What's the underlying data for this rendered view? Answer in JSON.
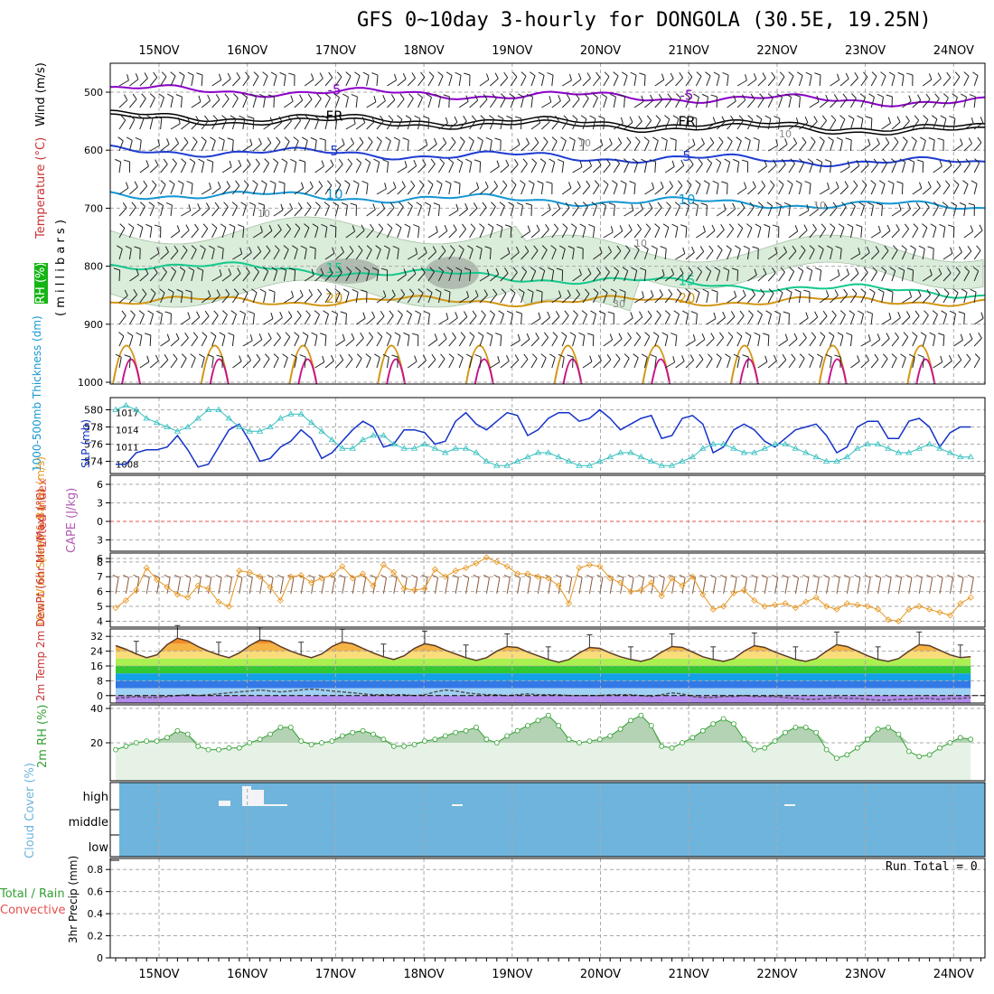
{
  "title": "GFS 0~10day 3-hourly for DONGOLA (30.5E, 19.25N)",
  "run_total": "Run Total = 0",
  "colors": {
    "purple": "#8a00c8",
    "black": "#000000",
    "blue": "#1e3cd2",
    "cyan": "#1496d2",
    "green": "#14c88c",
    "orange": "#d29614",
    "magenta": "#c8148c",
    "slp": "#1432c8",
    "thick": "#32bebe",
    "wind10": "#e6961e",
    "rh2m": "#32a032",
    "cloud": "#6eb4dc",
    "lifted_zero": "#e65050"
  },
  "chart_data": [
    {
      "id": "upper",
      "type": "contour",
      "title": "",
      "ylabel_parts": [
        "Wind (m/s)",
        " Temperature (°C)",
        "RH (%)"
      ],
      "ylabel_unit": "( m i l l i b a r s )",
      "y_ticks": [
        "500",
        "600",
        "700",
        "800",
        "900",
        "1000"
      ],
      "ylim": [
        450,
        1000
      ],
      "temperature_contours": [
        {
          "label": "-5",
          "p": 495
        },
        {
          "label": "FR",
          "p": 540
        },
        {
          "label": "5",
          "p": 600
        },
        {
          "label": "10",
          "p": 675
        },
        {
          "label": "15",
          "p": 795
        },
        {
          "label": "20",
          "p": 860
        }
      ],
      "rh_contour_labels": [
        "10",
        "10",
        "10",
        "10",
        "10",
        "30"
      ]
    },
    {
      "id": "slp_thickness",
      "type": "line",
      "ylabel_left": "1000-500mb Thickness (dm)",
      "ylabel_right": "SLP (mb)",
      "thickness_ticks": [
        "580",
        "578",
        "576",
        "574"
      ],
      "thickness_range": [
        573,
        581
      ],
      "slp_ticks": [
        "1017",
        "1014",
        "1011",
        "1008"
      ],
      "slp_range": [
        1007,
        1019
      ],
      "series": [
        {
          "name": "SLP (mb)",
          "values": [
            1008,
            1008,
            1010,
            1010.5,
            1010.5,
            1011,
            1013,
            1010.5,
            1007.5,
            1008,
            1011,
            1014,
            1015,
            1012,
            1008.5,
            1009,
            1011,
            1012,
            1014,
            1012.5,
            1009,
            1010,
            1012,
            1014,
            1015.5,
            1014.5,
            1011,
            1011.5,
            1014,
            1014,
            1013.5,
            1011.5,
            1012,
            1015.5,
            1017,
            1015,
            1014,
            1015.5,
            1017,
            1016.5,
            1013,
            1014,
            1016,
            1017,
            1017,
            1015.5,
            1016,
            1017.5,
            1016,
            1014,
            1015,
            1016,
            1016.5,
            1012.5,
            1013,
            1016,
            1016.5,
            1015,
            1010,
            1011,
            1014,
            1015,
            1014,
            1012,
            1011,
            1012.5,
            1014,
            1014.5,
            1015,
            1013,
            1010,
            1011,
            1014.5,
            1015.5,
            1015.5,
            1012.5,
            1012.5,
            1015.5,
            1016,
            1014.5,
            1011,
            1013.5,
            1014.5,
            1014.5
          ]
        },
        {
          "name": "Thickness (dm)",
          "values": [
            580,
            580.5,
            580,
            579,
            578.5,
            578,
            577.5,
            578,
            579,
            580,
            580,
            579,
            578,
            577.5,
            577.5,
            578,
            579,
            579.5,
            579.5,
            578.5,
            577.5,
            576.5,
            575.5,
            575.5,
            576.5,
            577,
            577,
            576,
            575.5,
            575.5,
            576,
            575.5,
            575,
            575.5,
            575.5,
            575,
            574,
            573.5,
            573.5,
            574,
            574.5,
            575,
            575,
            574.5,
            574,
            573.5,
            573.5,
            574,
            574.5,
            575,
            575,
            574.5,
            574,
            573.5,
            573.5,
            574,
            574.5,
            575.5,
            576,
            576,
            575.5,
            575,
            575,
            575.5,
            576,
            576,
            575.5,
            575,
            574.5,
            574,
            574,
            574.5,
            575.5,
            576,
            576,
            575.5,
            575,
            575,
            575.5,
            576,
            575.5,
            575,
            574.5,
            574.5
          ]
        }
      ]
    },
    {
      "id": "cape",
      "type": "line",
      "ylabel_left": "Lifted Index",
      "ylabel_right": "CAPE (J/kg)",
      "y_ticks": [
        "6",
        "3",
        "0",
        "3",
        "6"
      ],
      "ylim": [
        -6,
        6
      ],
      "series": [
        {
          "name": "Lifted Index zero",
          "values": [
            0
          ]
        }
      ]
    },
    {
      "id": "wind10m",
      "type": "line",
      "ylabel": "10m Wind Speed & Barbs (m/s)",
      "y_ticks": [
        "8",
        "7",
        "6",
        "5",
        "4"
      ],
      "ylim": [
        3.6,
        8.6
      ],
      "series": [
        {
          "name": "10m wind speed",
          "values": [
            4.9,
            5.4,
            6.1,
            7.6,
            6.8,
            6.3,
            5.8,
            5.6,
            6.4,
            6.2,
            5.3,
            5.0,
            7.4,
            7.3,
            7.0,
            6.3,
            5.4,
            7.0,
            7.1,
            6.6,
            6.9,
            7.1,
            7.7,
            6.9,
            7.2,
            6.4,
            7.8,
            7.3,
            6.2,
            6.1,
            6.2,
            7.5,
            7.0,
            7.4,
            7.6,
            7.9,
            8.3,
            8.0,
            7.7,
            7.2,
            7.2,
            7.0,
            6.9,
            6.4,
            5.2,
            7.6,
            7.8,
            7.7,
            6.9,
            6.6,
            6.0,
            6.1,
            6.6,
            5.7,
            6.9,
            6.4,
            7.0,
            5.8,
            4.8,
            5.0,
            5.9,
            6.1,
            5.4,
            5.0,
            5.1,
            5.2,
            4.9,
            5.3,
            5.6,
            5.0,
            4.8,
            5.2,
            5.1,
            5.0,
            4.8,
            4.1,
            4.0,
            4.8,
            5.0,
            4.8,
            4.6,
            4.4,
            5.2,
            5.6
          ]
        }
      ]
    },
    {
      "id": "temp2m",
      "type": "area",
      "ylabel": "2m Temp 2m DewPt (6hr Min/Max) (°C)",
      "y_ticks": [
        "32",
        "24",
        "16",
        "8",
        "0"
      ],
      "ylim": [
        -4,
        36
      ],
      "series": [
        {
          "name": "2m Temp",
          "values": [
            27.0,
            25.0,
            22.5,
            20.5,
            22.0,
            27.5,
            31.0,
            29.5,
            26.5,
            24.0,
            22.0,
            20.5,
            23.0,
            27.0,
            30.0,
            29.5,
            26.5,
            24.0,
            22.0,
            20.5,
            22.5,
            26.5,
            29.0,
            28.0,
            25.5,
            23.0,
            21.0,
            19.5,
            21.5,
            25.5,
            28.0,
            27.0,
            24.5,
            22.5,
            20.5,
            19.0,
            20.5,
            24.0,
            26.5,
            26.0,
            23.5,
            21.5,
            19.5,
            18.0,
            19.5,
            23.0,
            26.0,
            25.5,
            23.0,
            21.0,
            19.5,
            18.5,
            20.0,
            23.5,
            26.5,
            26.0,
            23.5,
            21.0,
            19.5,
            18.5,
            20.0,
            24.0,
            27.0,
            26.0,
            23.5,
            21.5,
            19.5,
            18.5,
            20.0,
            24.0,
            27.5,
            26.5,
            24.0,
            21.5,
            19.5,
            18.5,
            20.0,
            24.0,
            27.5,
            27.0,
            24.5,
            22.0,
            20.5,
            21.0
          ]
        },
        {
          "name": "2m DewPt",
          "values": [
            -1.5,
            -1.0,
            -0.5,
            -1.0,
            -1.0,
            -0.5,
            0.0,
            0.5,
            0.0,
            0.5,
            1.0,
            1.5,
            2.0,
            2.5,
            3.0,
            2.5,
            2.0,
            2.5,
            3.0,
            3.5,
            3.0,
            2.5,
            2.0,
            1.5,
            1.0,
            0.5,
            0.5,
            0.5,
            0.5,
            0.0,
            0.5,
            2.0,
            3.0,
            2.5,
            1.5,
            1.0,
            0.5,
            0.5,
            0.0,
            0.5,
            1.0,
            0.5,
            0.5,
            0.5,
            0.0,
            0.0,
            0.0,
            0.0,
            0.5,
            0.5,
            0.5,
            0.0,
            -0.5,
            0.5,
            1.5,
            1.0,
            -0.5,
            -1.0,
            -1.0,
            -0.5,
            -0.5,
            0.0,
            -0.5,
            -0.5,
            -0.5,
            -1.0,
            -1.5,
            -2.0,
            -2.0,
            -1.5,
            -1.0,
            -1.5,
            -1.5,
            -2.0,
            -2.5,
            -2.5,
            -2.0,
            -2.0,
            -1.5,
            -1.5,
            -2.0,
            -1.5,
            -1.5,
            -1.0
          ]
        }
      ]
    },
    {
      "id": "rh2m",
      "type": "area",
      "ylabel": "2m RH (%)",
      "y_ticks": [
        "40",
        "20"
      ],
      "ylim": [
        0,
        40
      ],
      "series": [
        {
          "name": "2m RH",
          "values": [
            16,
            18,
            20,
            21,
            21,
            23,
            27,
            25,
            18,
            16,
            16,
            17,
            17,
            20,
            22,
            25,
            29,
            29,
            21,
            19,
            20,
            21,
            24,
            26,
            27,
            25,
            22,
            18,
            18,
            19,
            21,
            22,
            24,
            26,
            27,
            29,
            22,
            20,
            24,
            27,
            30,
            33,
            36,
            30,
            22,
            20,
            21,
            22,
            24,
            28,
            33,
            36,
            30,
            18,
            17,
            20,
            23,
            27,
            31,
            34,
            31,
            22,
            16,
            17,
            21,
            26,
            29,
            29,
            26,
            16,
            11,
            13,
            17,
            22,
            28,
            29,
            25,
            15,
            12,
            13,
            17,
            20,
            23,
            22
          ]
        }
      ]
    },
    {
      "id": "cloud",
      "type": "bar",
      "ylabel": "Cloud Cover (%)",
      "y_ticks": [
        "high",
        "middle",
        "low"
      ]
    },
    {
      "id": "precip",
      "type": "bar",
      "ylabel_parts": [
        "Total / Rain",
        "Convective"
      ],
      "ylabel_unit": "3hr Precip (mm)",
      "y_ticks": [
        "0.8",
        "0.6",
        "0.4",
        "0.2",
        "0"
      ],
      "ylim": [
        0,
        0.9
      ],
      "series": [
        {
          "name": "3hr Precip",
          "values": [
            0
          ]
        }
      ]
    }
  ],
  "x_axis": {
    "date_labels": [
      "15NOV",
      "16NOV",
      "17NOV",
      "18NOV",
      "19NOV",
      "20NOV",
      "21NOV",
      "22NOV",
      "23NOV",
      "24NOV"
    ]
  }
}
